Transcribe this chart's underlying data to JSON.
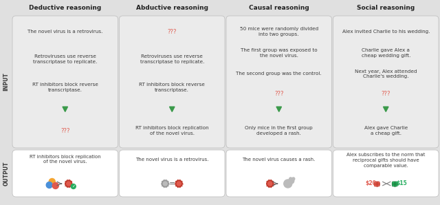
{
  "title_color": "#222222",
  "card_bg": "#ebebeb",
  "output_bg": "#ffffff",
  "border_color": "#cccccc",
  "text_color": "#3a3a3a",
  "red_color": "#e05a4e",
  "green_color": "#3a9a4a",
  "background_color": "#e0e0e0",
  "headers": [
    "Deductive reasoning",
    "Abductive reasoning",
    "Causal reasoning",
    "Social reasoning"
  ],
  "input_label": "INPUT",
  "output_label": "OUTPUT",
  "col1_input": [
    {
      "text": "The novel virus is a retrovirus.",
      "color": "#3a3a3a",
      "bold": false
    },
    {
      "text": "Retroviruses use reverse\ntranscriptase to replicate.",
      "color": "#3a3a3a",
      "bold": false
    },
    {
      "text": "RT inhibitors block reverse\ntranscriptase.",
      "color": "#3a3a3a",
      "bold": false
    },
    {
      "text": "???",
      "color": "#e05a4e",
      "bold": false
    }
  ],
  "col2_input": [
    {
      "text": "???",
      "color": "#e05a4e",
      "bold": false
    },
    {
      "text": "Retroviruses use reverse\ntranscriptase to replicate.",
      "color": "#3a3a3a",
      "bold": false
    },
    {
      "text": "RT inhibitors block reverse\ntranscriptase.",
      "color": "#3a3a3a",
      "bold": false
    },
    {
      "text": "RT inhibitors block replication\nof the novel virus.",
      "color": "#3a3a3a",
      "bold": false
    }
  ],
  "col3_input": [
    {
      "text": "50 mice were randomly divided\ninto two groups.",
      "color": "#3a3a3a",
      "bold": false
    },
    {
      "text": "The first group was exposed to\nthe novel virus.",
      "color": "#3a3a3a",
      "bold": false
    },
    {
      "text": "The second group was the control.",
      "color": "#3a3a3a",
      "bold": false
    },
    {
      "text": "???",
      "color": "#e05a4e",
      "bold": false
    },
    {
      "text": "Only mice in the first group\ndeveloped a rash.",
      "color": "#3a3a3a",
      "bold": false
    }
  ],
  "col4_input": [
    {
      "text": "Alex invited Charlie to his wedding.",
      "color": "#3a3a3a",
      "bold": false
    },
    {
      "text": "Charlie gave Alex a\ncheap wedding gift.",
      "color": "#3a3a3a",
      "bold": false
    },
    {
      "text": "Next year, Alex attended\nCharlie's wedding.",
      "color": "#3a3a3a",
      "bold": false
    },
    {
      "text": "???",
      "color": "#e05a4e",
      "bold": false
    },
    {
      "text": "Alex gave Charlie\na cheap gift.",
      "color": "#3a3a3a",
      "bold": false
    }
  ],
  "col1_output_text": "RT inhibitors block replication\nof the novel virus.",
  "col2_output_text": "The novel virus is a retrovirus.",
  "col3_output_text": "The novel virus causes a rash.",
  "col4_output_text": "Alex subscribes to the norm that\nreciprocal gifts should have\ncomparable value.",
  "triangle_color": "#3a9a4a"
}
